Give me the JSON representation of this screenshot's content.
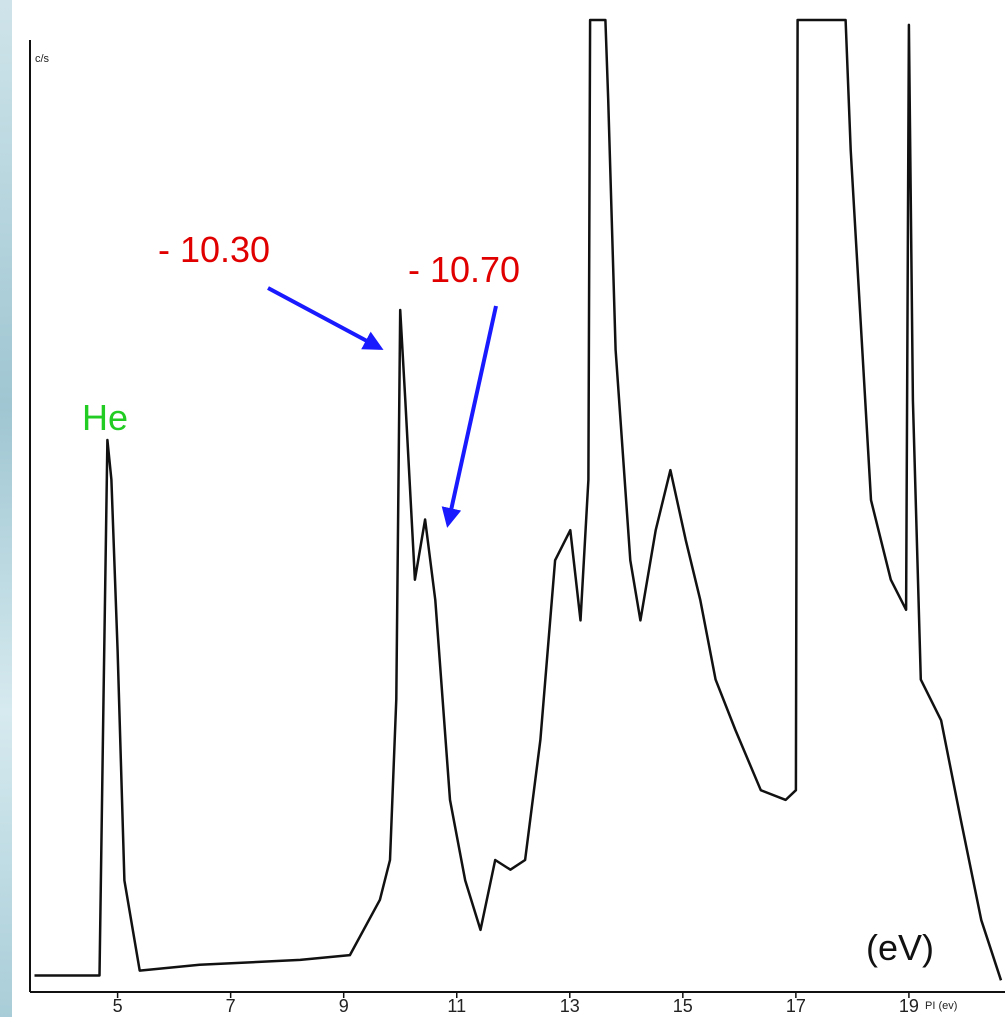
{
  "chart_data": {
    "type": "line",
    "y_label": "c/s",
    "x_label": "PI (ev)",
    "annotations": [
      "He",
      "- 10.30",
      "- 10.70",
      "(eV)"
    ],
    "xlim": [
      3.45,
      20.7
    ],
    "xticks": [
      5,
      7,
      9,
      11,
      13,
      15,
      17,
      19
    ],
    "ylim": [
      0,
      100
    ],
    "grid": false,
    "series": [
      {
        "color": "#111111",
        "x": [
          3.53,
          4.68,
          4.75,
          4.82,
          4.89,
          5.0,
          5.12,
          5.39,
          6.45,
          8.23,
          9.11,
          9.64,
          9.82,
          9.93,
          10.0,
          10.09,
          10.26,
          10.44,
          10.62,
          10.88,
          11.15,
          11.42,
          11.68,
          11.95,
          12.21,
          12.48,
          12.74,
          13.01,
          13.19,
          13.33,
          13.36,
          13.63,
          13.68,
          13.81,
          14.07,
          14.25,
          14.52,
          14.78,
          15.05,
          15.31,
          15.58,
          15.93,
          16.38,
          16.82,
          17.0,
          17.03,
          17.88,
          17.97,
          18.33,
          18.68,
          18.95,
          19.0,
          19.07,
          19.21,
          19.57,
          19.92,
          20.28,
          20.63
        ],
        "values": [
          1.5,
          1.5,
          30,
          56.7,
          52.6,
          35,
          11.3,
          2,
          2.6,
          3.1,
          3.6,
          9.3,
          13.4,
          30,
          70.1,
          60.8,
          42.3,
          48.5,
          40.2,
          19.6,
          11.3,
          6.2,
          13.4,
          12.4,
          13.4,
          25.8,
          44.3,
          47.4,
          38.1,
          52.6,
          100,
          100,
          91.8,
          66,
          44.3,
          38.1,
          47.4,
          53.6,
          46.4,
          40.2,
          32,
          26.8,
          20.6,
          19.6,
          20.6,
          100,
          100,
          86.6,
          50.5,
          42.3,
          39.2,
          99.5,
          60.8,
          32,
          27.8,
          17.5,
          7.2,
          1
        ]
      }
    ]
  }
}
